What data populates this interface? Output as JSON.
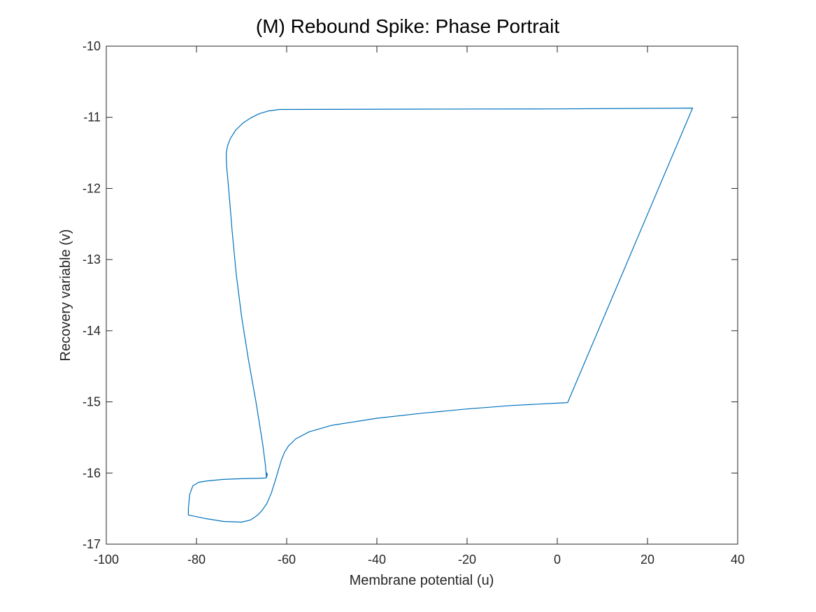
{
  "chart_data": {
    "type": "line",
    "title": "(M) Rebound Spike: Phase Portrait",
    "xlabel": "Membrane potential (u)",
    "ylabel": "Recovery variable (v)",
    "xlim": [
      -100,
      40
    ],
    "ylim": [
      -17,
      -10
    ],
    "xticks": [
      "-100",
      "-80",
      "-60",
      "-40",
      "-20",
      "0",
      "20",
      "40"
    ],
    "yticks": [
      "-10",
      "-11",
      "-12",
      "-13",
      "-14",
      "-15",
      "-16",
      "-17"
    ],
    "grid": false,
    "legend": "none",
    "line_color": "#0072BD",
    "series": [
      {
        "x": [
          -64.5,
          -64.7,
          -65.3,
          -66.8,
          -68.5,
          -70.0,
          -71.2,
          -72.1,
          -72.6,
          -73.0,
          -73.3,
          -73.4,
          -73.4,
          -73.1,
          -72.5,
          -71.3,
          -69.7,
          -68.0,
          -66.1,
          -64.0,
          -61.6,
          -30.0,
          0.0,
          30.0,
          2.3,
          -10.0,
          -20.0,
          -30.0,
          -40.0,
          -50.0,
          -55.0,
          -58.0,
          -59.6,
          -60.5,
          -61.2,
          -61.8,
          -62.4,
          -63.4,
          -64.4,
          -65.5,
          -66.6,
          -68.0,
          -70.0,
          -74.0,
          -78.0,
          -81.8,
          -81.8,
          -81.5,
          -80.8,
          -79.5,
          -77.5,
          -74.0,
          -70.0,
          -66.5,
          -64.6,
          -64.4,
          -64.3,
          -64.4,
          -64.5
        ],
        "y": [
          -16.07,
          -15.9,
          -15.6,
          -15.0,
          -14.4,
          -13.8,
          -13.2,
          -12.6,
          -12.2,
          -11.9,
          -11.7,
          -11.55,
          -11.5,
          -11.4,
          -11.3,
          -11.18,
          -11.08,
          -11.01,
          -10.95,
          -10.91,
          -10.89,
          -10.885,
          -10.882,
          -10.87,
          -15.01,
          -15.05,
          -15.1,
          -15.16,
          -15.23,
          -15.33,
          -15.42,
          -15.52,
          -15.62,
          -15.71,
          -15.82,
          -15.95,
          -16.08,
          -16.28,
          -16.43,
          -16.53,
          -16.6,
          -16.66,
          -16.69,
          -16.68,
          -16.64,
          -16.59,
          -16.5,
          -16.3,
          -16.18,
          -16.13,
          -16.11,
          -16.09,
          -16.08,
          -16.075,
          -16.07,
          -16.05,
          -16.02,
          -16.0,
          -16.02
        ]
      }
    ]
  }
}
